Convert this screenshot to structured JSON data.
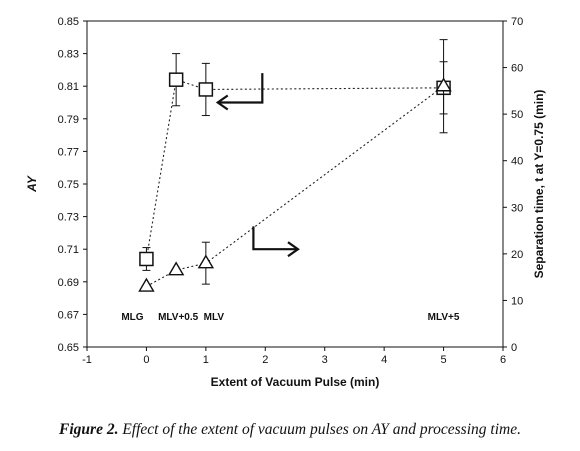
{
  "figure": {
    "caption_label": "Figure 2.",
    "caption_text": "Effect of the extent of vacuum pulses on AY and processing time."
  },
  "chart_data": {
    "type": "scatter",
    "xlabel": "Extent of Vacuum Pulse (min)",
    "ylabel_left": "AY",
    "ylabel_right": "Separation time, t at Y=0.75 (min)",
    "xlim": [
      -1,
      6
    ],
    "ylim_left": [
      0.65,
      0.85
    ],
    "ylim_right": [
      0,
      70
    ],
    "x_ticks": [
      "-1",
      "0",
      "1",
      "2",
      "3",
      "4",
      "5",
      "6"
    ],
    "y_left_ticks": [
      "0.65",
      "0.67",
      "0.69",
      "0.71",
      "0.73",
      "0.75",
      "0.77",
      "0.79",
      "0.81",
      "0.83",
      "0.85"
    ],
    "y_right_ticks": [
      "0",
      "10",
      "20",
      "30",
      "40",
      "50",
      "60",
      "70"
    ],
    "grid": false,
    "series": [
      {
        "marker": "square",
        "axis": "left",
        "line": "dotted",
        "x": [
          0,
          0.5,
          1,
          5
        ],
        "y": [
          0.704,
          0.814,
          0.808,
          0.809
        ],
        "err": [
          0.007,
          0.016,
          0.016,
          0.016
        ]
      },
      {
        "marker": "triangle",
        "axis": "right",
        "line": "dotted",
        "x": [
          0,
          0.5,
          1,
          5
        ],
        "y": [
          13,
          16.5,
          18,
          56
        ],
        "err": [
          0,
          0,
          4.5,
          10
        ]
      }
    ],
    "annotations": [
      {
        "text": "MLG",
        "x": 0
      },
      {
        "text": "MLV+0.5",
        "x": 0.5
      },
      {
        "text": "MLV",
        "x": 1
      },
      {
        "text": "MLV+5",
        "x": 5
      }
    ],
    "arrows": [
      {
        "direction": "left",
        "points_to": "left axis"
      },
      {
        "direction": "right",
        "points_to": "right axis"
      }
    ]
  }
}
